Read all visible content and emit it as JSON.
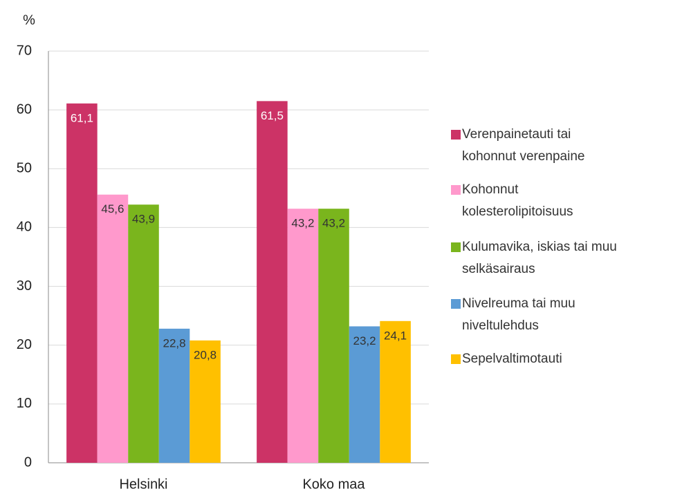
{
  "chart_data": {
    "type": "bar",
    "y_label": "%",
    "categories": [
      "Helsinki",
      "Koko maa"
    ],
    "series": [
      {
        "name": "Verenpainetauti tai kohonnut verenpaine",
        "color": "#cc3366",
        "values": [
          61.1,
          61.5
        ],
        "value_labels": [
          "61,1",
          "61,5"
        ]
      },
      {
        "name": "Kohonnut kolesterolipitoisuus",
        "color": "#ff99cc",
        "values": [
          45.6,
          43.2
        ],
        "value_labels": [
          "45,6",
          "43,2"
        ]
      },
      {
        "name": "Kulumavika, iskias tai muu selkäsairaus",
        "color": "#7ab51d",
        "values": [
          43.9,
          43.2
        ],
        "value_labels": [
          "43,9",
          "43,2"
        ]
      },
      {
        "name": "Nivelreuma tai  muu niveltulehdus",
        "color": "#5b9bd5",
        "values": [
          22.8,
          23.2
        ],
        "value_labels": [
          "22,8",
          "23,2"
        ]
      },
      {
        "name": "Sepelvaltimotauti",
        "color": "#ffc000",
        "values": [
          20.8,
          24.1
        ],
        "value_labels": [
          "20,8",
          "24,1"
        ]
      }
    ],
    "ylim": [
      0,
      70
    ],
    "yticks": [
      0,
      10,
      20,
      30,
      40,
      50,
      60,
      70
    ],
    "grid": true,
    "legend": "right"
  }
}
